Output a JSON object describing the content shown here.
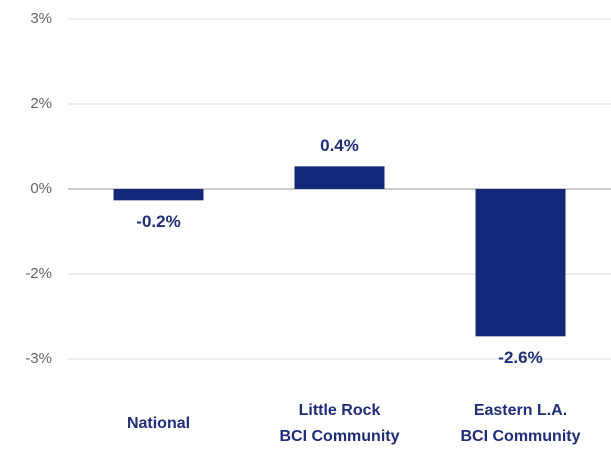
{
  "chart_data": {
    "type": "bar",
    "categories": [
      "National",
      "Little Rock\nBCI Community",
      "Eastern L.A.\nBCI Community"
    ],
    "values": [
      -0.2,
      0.4,
      -2.6
    ],
    "value_labels": [
      "-0.2%",
      "0.4%",
      "-2.6%"
    ],
    "color": "#14287a",
    "ylim": [
      -3,
      3
    ],
    "yticks": [
      {
        "value": 3,
        "label": "3%"
      },
      {
        "value": 1.5,
        "label": "2%"
      },
      {
        "value": 0,
        "label": "0%"
      },
      {
        "value": -1.5,
        "label": "-2%"
      },
      {
        "value": -3,
        "label": "-3%"
      }
    ],
    "grid": true
  }
}
